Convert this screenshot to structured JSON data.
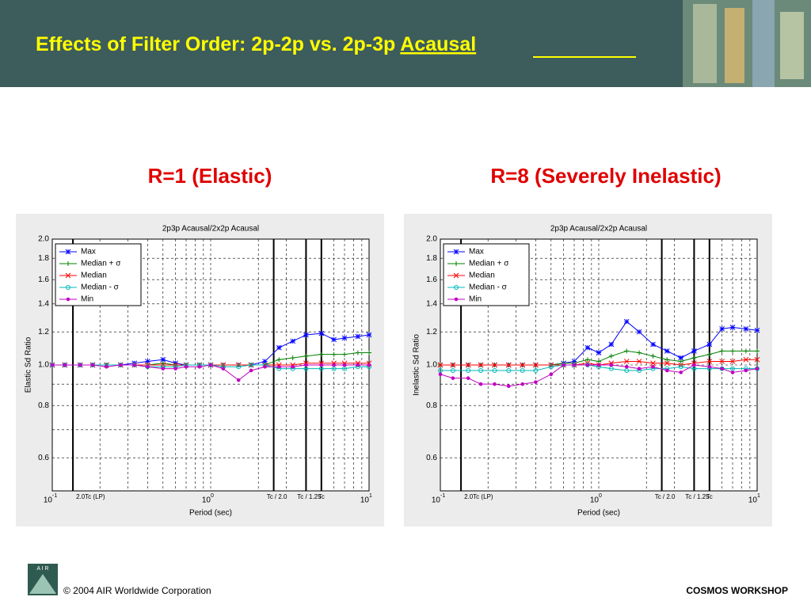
{
  "header": {
    "title": "Effects of Filter Order: 2p-2p vs. 2p-3p ",
    "title_emphasis": "Acausal"
  },
  "footer": {
    "logo": "A I R",
    "copyright": "© 2004 AIR Worldwide Corporation",
    "event": "COSMOS WORKSHOP"
  },
  "chart_data": [
    {
      "type": "line",
      "heading": "R=1 (Elastic)",
      "title": "2p3p Acausal/2x2p Acausal",
      "x_label": "Period (sec)",
      "y_label": "Elastic Sd Ratio",
      "xscale": "log",
      "yscale": "log",
      "grid": true,
      "legend": "upper left",
      "xlim": [
        0.1,
        10
      ],
      "ylim": [
        0.5,
        2.0
      ],
      "xticks": [
        {
          "value": 0.1,
          "label": "10",
          "exponent": "-1"
        },
        {
          "value": 1,
          "label": "10",
          "exponent": "0"
        },
        {
          "value": 10,
          "label": "10",
          "exponent": "1"
        }
      ],
      "xminor": [
        0.2,
        0.3,
        0.4,
        0.5,
        0.6,
        0.7,
        0.8,
        0.9,
        2,
        3,
        4,
        5,
        6,
        7,
        8,
        9
      ],
      "yticks": [
        {
          "value": 0.6,
          "label": "0.6"
        },
        {
          "value": 0.8,
          "label": "0.8"
        },
        {
          "value": 1,
          "label": "1.0"
        },
        1.2,
        1.4,
        1.6,
        1.8,
        {
          "value": 2,
          "label": "2.0"
        }
      ],
      "yminor": [
        0.7,
        0.9
      ],
      "vlines": [
        {
          "value": 0.135,
          "label": "2.0Tc (LP)"
        },
        {
          "value": 2.5,
          "label": "Tc / 2.0"
        },
        {
          "value": 4,
          "label": "Tc / 1.25"
        },
        {
          "value": 5,
          "label": "Tc"
        }
      ],
      "x": [
        0.1,
        0.12,
        0.15,
        0.18,
        0.22,
        0.27,
        0.33,
        0.4,
        0.5,
        0.6,
        0.7,
        0.85,
        1,
        1.2,
        1.5,
        1.8,
        2.2,
        2.7,
        3.3,
        4,
        5,
        6,
        7,
        8.5,
        10
      ],
      "series": [
        {
          "name": "Max",
          "color": "#0000ff",
          "marker": "star",
          "values": [
            1,
            1,
            1,
            1,
            1,
            1,
            1.01,
            1.02,
            1.03,
            1.01,
            1,
            1,
            1,
            1,
            1,
            1,
            1.02,
            1.1,
            1.14,
            1.18,
            1.19,
            1.15,
            1.16,
            1.17,
            1.18
          ]
        },
        {
          "name": "Median + σ",
          "color": "#008000",
          "marker": "plus",
          "values": [
            1,
            1,
            1,
            1,
            1,
            1,
            1,
            1,
            1.01,
            1,
            1,
            1,
            1,
            1,
            1,
            1,
            1,
            1.03,
            1.04,
            1.05,
            1.06,
            1.06,
            1.06,
            1.07,
            1.07
          ]
        },
        {
          "name": "Median",
          "color": "#ff0000",
          "marker": "cross",
          "values": [
            1,
            1,
            1,
            1,
            1,
            1,
            1,
            1,
            1,
            1,
            1,
            1,
            1,
            1,
            1,
            1,
            1,
            1,
            1,
            1.01,
            1.01,
            1.01,
            1.01,
            1.01,
            1.01
          ]
        },
        {
          "name": "Median - σ",
          "color": "#00b8b8",
          "marker": "circle",
          "values": [
            1,
            1,
            1,
            1,
            1,
            1,
            1,
            0.99,
            0.99,
            0.99,
            1,
            1,
            1,
            0.99,
            0.99,
            1,
            1,
            0.98,
            0.98,
            0.98,
            0.98,
            0.98,
            0.98,
            0.99,
            0.99
          ]
        },
        {
          "name": "Min",
          "color": "#c000c0",
          "marker": "dot",
          "values": [
            1,
            1,
            1,
            1,
            0.99,
            1,
            1,
            0.99,
            0.98,
            0.98,
            0.99,
            0.99,
            1,
            0.98,
            0.92,
            0.97,
            0.99,
            0.99,
            0.99,
            1,
            1,
            1,
            1,
            1,
            1
          ]
        }
      ]
    },
    {
      "type": "line",
      "heading": "R=8 (Severely Inelastic)",
      "title": "2p3p Acausal/2x2p Acausal",
      "x_label": "Period (sec)",
      "y_label": "Inelastic Sd Ratio",
      "xscale": "log",
      "yscale": "log",
      "grid": true,
      "legend": "upper left",
      "xlim": [
        0.1,
        10
      ],
      "ylim": [
        0.5,
        2.0
      ],
      "xticks": [
        {
          "value": 0.1,
          "label": "10",
          "exponent": "-1"
        },
        {
          "value": 1,
          "label": "10",
          "exponent": "0"
        },
        {
          "value": 10,
          "label": "10",
          "exponent": "1"
        }
      ],
      "xminor": [
        0.2,
        0.3,
        0.4,
        0.5,
        0.6,
        0.7,
        0.8,
        0.9,
        2,
        3,
        4,
        5,
        6,
        7,
        8,
        9
      ],
      "yticks": [
        {
          "value": 0.6,
          "label": "0.6"
        },
        {
          "value": 0.8,
          "label": "0.8"
        },
        {
          "value": 1,
          "label": "1.0"
        },
        1.2,
        1.4,
        1.6,
        1.8,
        {
          "value": 2,
          "label": "2.0"
        }
      ],
      "yminor": [
        0.7,
        0.9
      ],
      "vlines": [
        {
          "value": 0.135,
          "label": "2.0Tc (LP)"
        },
        {
          "value": 2.5,
          "label": "Tc / 2.0"
        },
        {
          "value": 4,
          "label": "Tc / 1.25"
        },
        {
          "value": 5,
          "label": "Tc"
        }
      ],
      "x": [
        0.1,
        0.12,
        0.15,
        0.18,
        0.22,
        0.27,
        0.33,
        0.4,
        0.5,
        0.6,
        0.7,
        0.85,
        1,
        1.2,
        1.5,
        1.8,
        2.2,
        2.7,
        3.3,
        4,
        5,
        6,
        7,
        8.5,
        10
      ],
      "series": [
        {
          "name": "Max",
          "color": "#0000ff",
          "marker": "star",
          "values": [
            1,
            1,
            1,
            1,
            1,
            1,
            1,
            1,
            1,
            1.01,
            1.02,
            1.1,
            1.07,
            1.12,
            1.27,
            1.2,
            1.12,
            1.08,
            1.04,
            1.08,
            1.12,
            1.22,
            1.23,
            1.22,
            1.21
          ]
        },
        {
          "name": "Median + σ",
          "color": "#008000",
          "marker": "plus",
          "values": [
            1,
            1,
            1,
            1,
            1,
            1,
            1,
            1,
            1,
            1.01,
            1.01,
            1.03,
            1.02,
            1.05,
            1.08,
            1.07,
            1.05,
            1.03,
            1.02,
            1.04,
            1.06,
            1.08,
            1.08,
            1.08,
            1.08
          ]
        },
        {
          "name": "Median",
          "color": "#ff0000",
          "marker": "cross",
          "values": [
            1,
            1,
            1,
            1,
            1,
            1,
            1,
            1,
            1,
            1,
            1,
            1.01,
            1,
            1.01,
            1.02,
            1.02,
            1.01,
            1.01,
            1,
            1.01,
            1.02,
            1.02,
            1.02,
            1.03,
            1.03
          ]
        },
        {
          "name": "Median - σ",
          "color": "#00b8b8",
          "marker": "circle",
          "values": [
            0.97,
            0.97,
            0.97,
            0.97,
            0.97,
            0.97,
            0.97,
            0.97,
            0.99,
            1,
            1,
            1,
            0.99,
            0.98,
            0.97,
            0.97,
            0.98,
            0.98,
            0.99,
            0.98,
            0.98,
            0.98,
            0.98,
            0.98,
            0.98
          ]
        },
        {
          "name": "Min",
          "color": "#c000c0",
          "marker": "dot",
          "values": [
            0.95,
            0.93,
            0.93,
            0.9,
            0.9,
            0.89,
            0.9,
            0.91,
            0.95,
            1,
            1,
            1,
            1,
            1,
            0.99,
            0.98,
            0.99,
            0.97,
            0.96,
            1,
            0.99,
            0.98,
            0.96,
            0.97,
            0.98
          ]
        }
      ]
    }
  ]
}
